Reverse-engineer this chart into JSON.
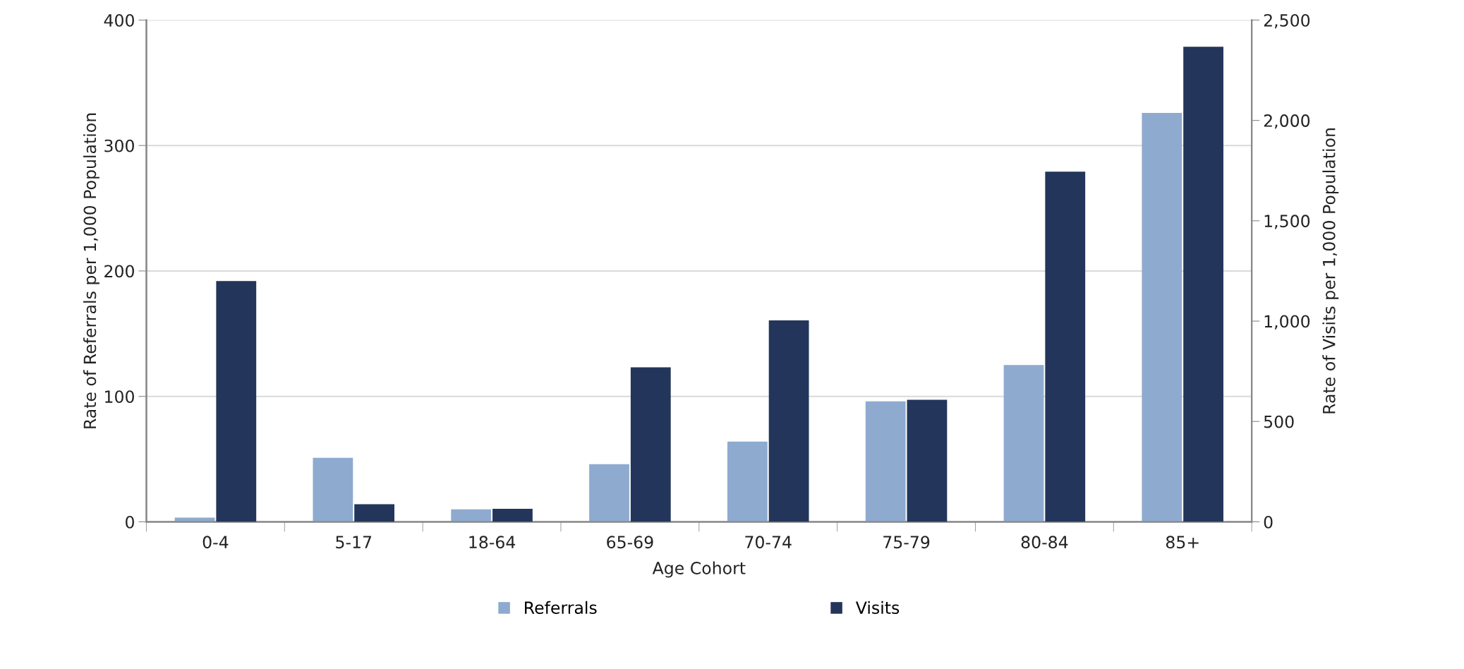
{
  "chart_data": {
    "type": "bar",
    "xlabel": "Age Cohort",
    "ylabel": "Rate of Referrals per 1,000 Population",
    "y2label": "Rate of Visits per 1,000 Population",
    "categories": [
      "0-4",
      "5-17",
      "18-64",
      "65-69",
      "70-74",
      "75-79",
      "80-84",
      "85+"
    ],
    "series": [
      {
        "name": "Referrals",
        "color": "#8eaacf",
        "values": [
          3.4,
          51,
          10,
          46,
          64,
          96,
          125,
          326
        ]
      },
      {
        "name": "Visits",
        "color": "#23355a",
        "axis": "y2",
        "values": [
          1200,
          88,
          65,
          770,
          1004,
          608,
          1745,
          2367
        ]
      }
    ],
    "ylim": [
      0,
      400
    ],
    "yticks": [
      0,
      100,
      200,
      300,
      400
    ],
    "y2lim": [
      0,
      2500
    ],
    "y2ticks": [
      0,
      {
        "value": 500,
        "label": "500"
      },
      {
        "value": 1000,
        "label": "1,000"
      },
      {
        "value": 1500,
        "label": "1,500"
      },
      {
        "value": 2000,
        "label": "2,000"
      },
      {
        "value": 2500,
        "label": "2,500"
      }
    ],
    "grid": "y",
    "legend": "bottom"
  }
}
